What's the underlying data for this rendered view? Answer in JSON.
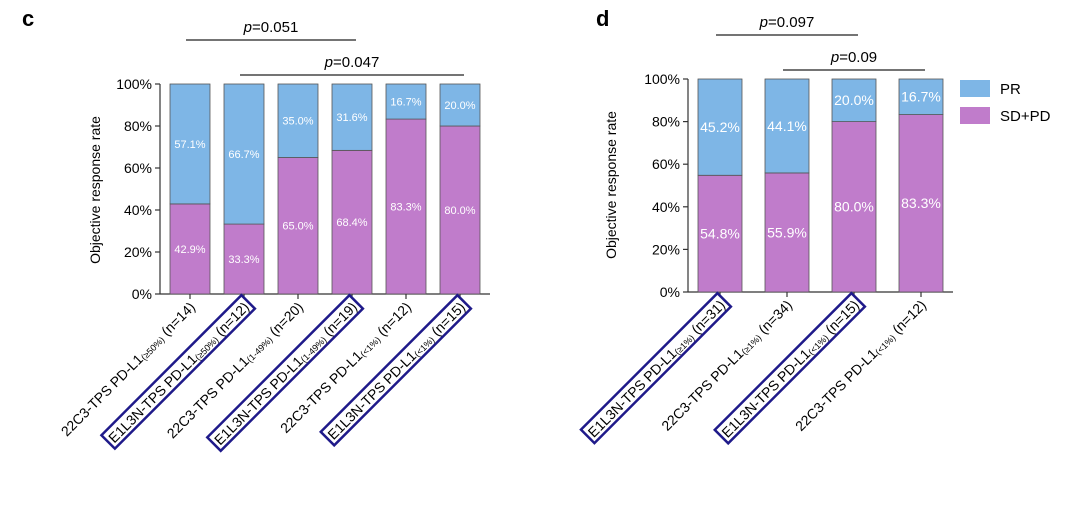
{
  "colors": {
    "PR": "#7EB6E6",
    "SD+PD": "#C07CCB",
    "box": "#1F1A8A"
  },
  "legend": [
    {
      "label": "PR",
      "key": "PR"
    },
    {
      "label": "SD+PD",
      "key": "SD+PD"
    }
  ],
  "chart_data": [
    {
      "panel": "c",
      "type": "bar",
      "stacked": true,
      "ylabel": "Objective response rate",
      "ylim": [
        0,
        100
      ],
      "yticks": [
        "0%",
        "20%",
        "40%",
        "60%",
        "80%",
        "100%"
      ],
      "categories": [
        {
          "main": "22C3-TPS PD-L1",
          "sub": "(≥50%)",
          "n": "(n=14)",
          "boxed": false
        },
        {
          "main": "E1L3N-TPS PD-L1",
          "sub": "(≥50%)",
          "n": "(n=12)",
          "boxed": true
        },
        {
          "main": "22C3-TPS PD-L1",
          "sub": "(1-49%)",
          "n": "(n=20)",
          "boxed": false
        },
        {
          "main": "E1L3N-TPS PD-L1",
          "sub": "(1-49%)",
          "n": "(n=19)",
          "boxed": true
        },
        {
          "main": "22C3-TPS PD-L1",
          "sub": "(<1%)",
          "n": "(n=12)",
          "boxed": false
        },
        {
          "main": "E1L3N-TPS PD-L1",
          "sub": "(<1%)",
          "n": "(n=15)",
          "boxed": true
        }
      ],
      "series": [
        {
          "name": "SD+PD",
          "values": [
            42.9,
            33.3,
            65.0,
            68.4,
            83.3,
            80.0
          ],
          "labels": [
            "42.9%",
            "33.3%",
            "65.0%",
            "68.4%",
            "83.3%",
            "80.0%"
          ]
        },
        {
          "name": "PR",
          "values": [
            57.1,
            66.7,
            35.0,
            31.6,
            16.7,
            20.0
          ],
          "labels": [
            "57.1%",
            "66.7%",
            "35.0%",
            "31.6%",
            "16.7%",
            "20.0%"
          ]
        }
      ],
      "annotations": [
        {
          "p": "p",
          "value": "=0.051",
          "from": 0,
          "to": 3
        },
        {
          "p": "p",
          "value": "=0.047",
          "from": 1,
          "to": 5
        }
      ]
    },
    {
      "panel": "d",
      "type": "bar",
      "stacked": true,
      "ylabel": "Objective response rate",
      "ylim": [
        0,
        100
      ],
      "yticks": [
        "0%",
        "20%",
        "40%",
        "60%",
        "80%",
        "100%"
      ],
      "categories": [
        {
          "main": "E1L3N-TPS PD-L1",
          "sub": "(≥1%)",
          "n": "(n=31)",
          "boxed": true
        },
        {
          "main": "22C3-TPS PD-L1",
          "sub": "(≥1%)",
          "n": "(n=34)",
          "boxed": false
        },
        {
          "main": "E1L3N-TPS PD-L1",
          "sub": "(<1%)",
          "n": "(n=15)",
          "boxed": true
        },
        {
          "main": "22C3-TPS PD-L1",
          "sub": "(<1%)",
          "n": "(n=12)",
          "boxed": false
        }
      ],
      "series": [
        {
          "name": "SD+PD",
          "values": [
            54.8,
            55.9,
            80.0,
            83.3
          ],
          "labels": [
            "54.8%",
            "55.9%",
            "80.0%",
            "83.3%"
          ]
        },
        {
          "name": "PR",
          "values": [
            45.2,
            44.1,
            20.0,
            16.7
          ],
          "labels": [
            "45.2%",
            "44.1%",
            "20.0%",
            "16.7%"
          ]
        }
      ],
      "annotations": [
        {
          "p": "p",
          "value": "=0.097",
          "from": 0,
          "to": 2
        },
        {
          "p": "p",
          "value": "=0.09",
          "from": 1,
          "to": 3
        }
      ]
    }
  ]
}
